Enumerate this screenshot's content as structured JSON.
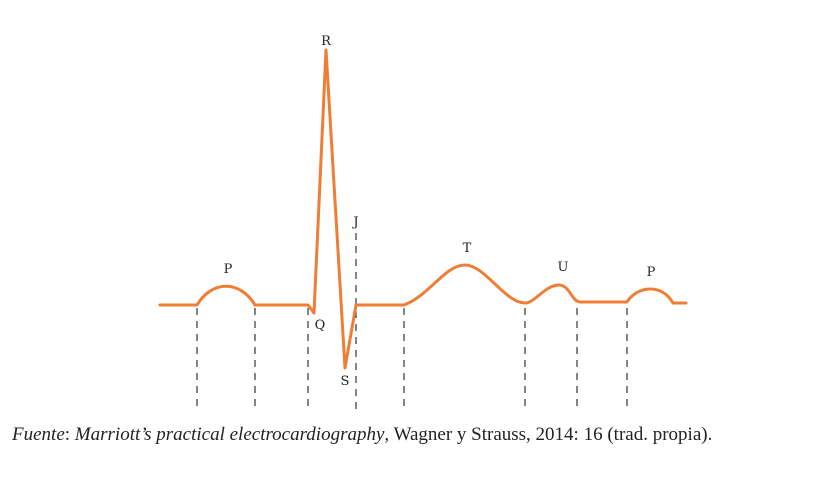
{
  "diagram": {
    "stroke_color": "#f07d35",
    "guide_color": "#333333",
    "labels": {
      "p1": "P",
      "q": "Q",
      "r": "R",
      "s": "S",
      "j": "J",
      "t": "T",
      "u": "U",
      "p2": "P"
    }
  },
  "caption": {
    "label": "Fuente",
    "sep": ": ",
    "title": "Marriott’s practical electrocardiography",
    "rest": ", Wagner y Strauss, 2014: 16 (trad. propia)."
  }
}
